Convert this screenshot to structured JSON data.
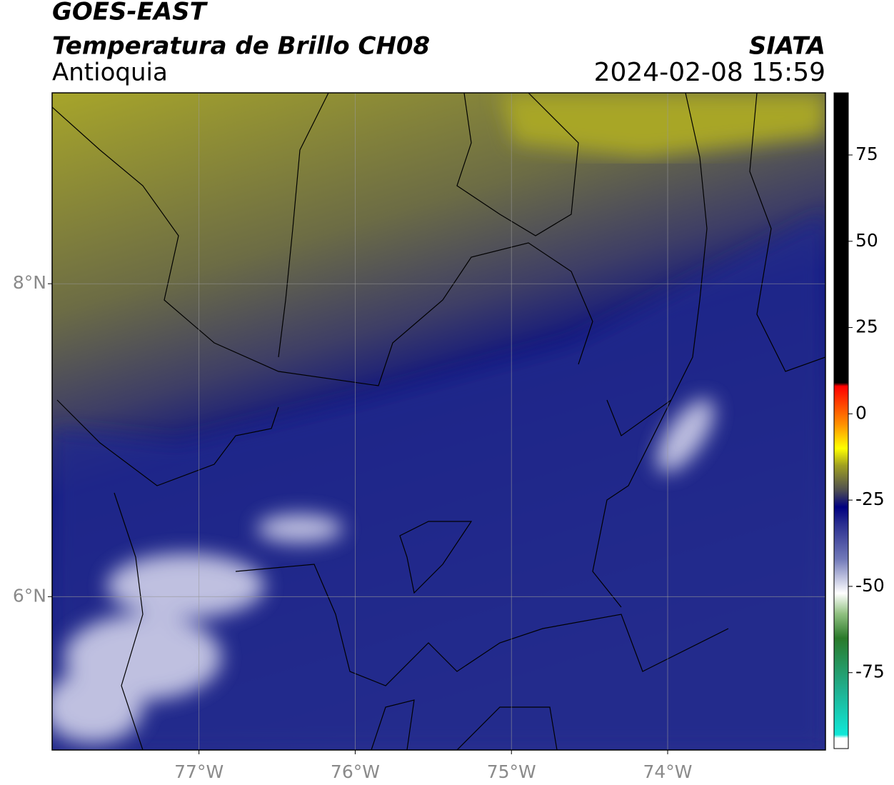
{
  "chart_data": {
    "type": "map",
    "title": "GOES-EAST",
    "subtitle": "Temperatura de Brillo CH08",
    "region": "Antioquia",
    "source": "SIATA",
    "datetime": "2024-02-08 15:59",
    "xlim": [
      -77.94,
      -72.99
    ],
    "ylim": [
      5.02,
      9.22
    ],
    "xticks": [
      {
        "value": -77,
        "label": "77°W"
      },
      {
        "value": -76,
        "label": "76°W"
      },
      {
        "value": -75,
        "label": "75°W"
      },
      {
        "value": -74,
        "label": "74°W"
      }
    ],
    "yticks": [
      {
        "value": 8,
        "label": "8°N"
      },
      {
        "value": 6,
        "label": "6°N"
      }
    ],
    "grid": true,
    "clim": [
      -97,
      93
    ],
    "cticks": [
      75,
      50,
      25,
      0,
      -25,
      -50,
      -75
    ],
    "colormap": [
      {
        "value": -97,
        "color": "#ffffff"
      },
      {
        "value": -94,
        "color": "#ffffff"
      },
      {
        "value": -93,
        "color": "#10e8d8"
      },
      {
        "value": -80,
        "color": "#20b090"
      },
      {
        "value": -65,
        "color": "#2a7a2a"
      },
      {
        "value": -58,
        "color": "#90c080"
      },
      {
        "value": -52,
        "color": "#ffffff"
      },
      {
        "value": -42,
        "color": "#7078b8"
      },
      {
        "value": -32,
        "color": "#2a2e90"
      },
      {
        "value": -27,
        "color": "#000080"
      },
      {
        "value": -22,
        "color": "#505050"
      },
      {
        "value": -15,
        "color": "#a0a020"
      },
      {
        "value": -10,
        "color": "#ffff00"
      },
      {
        "value": -3,
        "color": "#ff9000"
      },
      {
        "value": 8,
        "color": "#ff0000"
      },
      {
        "value": 9,
        "color": "#000000"
      },
      {
        "value": 93,
        "color": "#000000"
      }
    ]
  }
}
